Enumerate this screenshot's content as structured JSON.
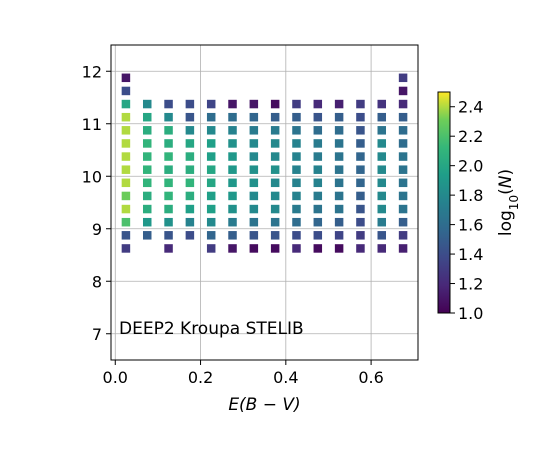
{
  "chart_data": {
    "type": "heatmap",
    "annotation": "DEEP2 Kroupa STELIB",
    "xlabel_base": "E(B",
    "xlabel_minus": " − ",
    "xlabel_end": "V)",
    "xlim": [
      -0.01,
      0.71
    ],
    "ylim": [
      6.5,
      12.5
    ],
    "x_ticks": [
      0.0,
      0.2,
      0.4,
      0.6
    ],
    "x_tick_labels": [
      "0.0",
      "0.2",
      "0.4",
      "0.6"
    ],
    "y_ticks": [
      7,
      8,
      9,
      10,
      11,
      12
    ],
    "y_tick_labels": [
      "7",
      "8",
      "9",
      "10",
      "11",
      "12"
    ],
    "grid": true,
    "colorbar": {
      "label_base": "log",
      "label_sub": "10",
      "label_open": "(",
      "label_var": "N",
      "label_close": ")",
      "range": [
        1.0,
        2.5
      ],
      "ticks": [
        1.0,
        1.2,
        1.4,
        1.6,
        1.8,
        2.0,
        2.2,
        2.4
      ],
      "tick_labels": [
        "1.0",
        "1.2",
        "1.4",
        "1.6",
        "1.8",
        "2.0",
        "2.2",
        "2.4"
      ],
      "colormap": "viridis"
    },
    "x": [
      0.025,
      0.075,
      0.125,
      0.175,
      0.225,
      0.275,
      0.325,
      0.375,
      0.425,
      0.475,
      0.525,
      0.575,
      0.625,
      0.675
    ],
    "y": [
      8.625,
      8.875,
      9.125,
      9.375,
      9.625,
      9.875,
      10.125,
      10.375,
      10.625,
      10.875,
      11.125,
      11.375,
      11.625,
      11.875
    ],
    "z": [
      [
        1.3,
        1.45,
        2.2,
        2.4,
        2.3,
        2.4,
        2.4,
        2.4,
        2.4,
        2.4,
        2.4,
        2.0,
        1.4,
        1.1
      ],
      [
        null,
        1.5,
        1.9,
        2.05,
        2.05,
        2.1,
        2.1,
        2.1,
        2.1,
        2.05,
        2.0,
        1.8,
        null,
        null
      ],
      [
        1.2,
        1.45,
        1.85,
        2.05,
        2.1,
        2.1,
        2.05,
        2.1,
        2.05,
        2.05,
        1.8,
        1.4,
        null,
        null
      ],
      [
        null,
        1.4,
        1.75,
        1.95,
        2.05,
        2.1,
        2.05,
        2.05,
        2.0,
        1.8,
        1.45,
        1.4,
        null,
        null
      ],
      [
        1.3,
        1.55,
        1.8,
        1.95,
        1.95,
        2.0,
        2.0,
        1.95,
        1.95,
        1.8,
        1.6,
        1.35,
        null,
        null
      ],
      [
        1.1,
        1.5,
        1.7,
        1.85,
        1.9,
        1.9,
        1.9,
        1.9,
        1.85,
        1.75,
        1.6,
        1.1,
        null,
        null
      ],
      [
        1.05,
        1.45,
        1.65,
        1.8,
        1.8,
        1.85,
        1.85,
        1.8,
        1.8,
        1.7,
        1.55,
        1.1,
        null,
        null
      ],
      [
        1.05,
        1.45,
        1.65,
        1.8,
        1.8,
        1.8,
        1.85,
        1.8,
        1.8,
        1.7,
        1.5,
        1.05,
        null,
        null
      ],
      [
        1.2,
        1.4,
        1.6,
        1.7,
        1.75,
        1.75,
        1.75,
        1.75,
        1.75,
        1.65,
        1.5,
        1.3,
        null,
        null
      ],
      [
        1.05,
        1.4,
        1.55,
        1.65,
        1.7,
        1.75,
        1.75,
        1.7,
        1.7,
        1.6,
        1.45,
        1.2,
        null,
        null
      ],
      [
        1.05,
        1.35,
        1.5,
        1.65,
        1.65,
        1.65,
        1.65,
        1.65,
        1.65,
        1.6,
        1.5,
        1.15,
        null,
        null
      ],
      [
        1.2,
        1.3,
        1.4,
        1.45,
        1.5,
        1.55,
        1.55,
        1.55,
        1.5,
        1.45,
        1.4,
        1.3,
        null,
        null
      ],
      [
        1.2,
        1.45,
        1.7,
        1.8,
        1.8,
        1.8,
        1.8,
        1.8,
        1.8,
        1.65,
        1.5,
        1.25,
        null,
        null
      ],
      [
        1.15,
        1.3,
        1.5,
        1.65,
        1.65,
        1.65,
        1.65,
        1.65,
        1.6,
        1.6,
        1.5,
        1.2,
        1.1,
        1.3
      ]
    ]
  }
}
